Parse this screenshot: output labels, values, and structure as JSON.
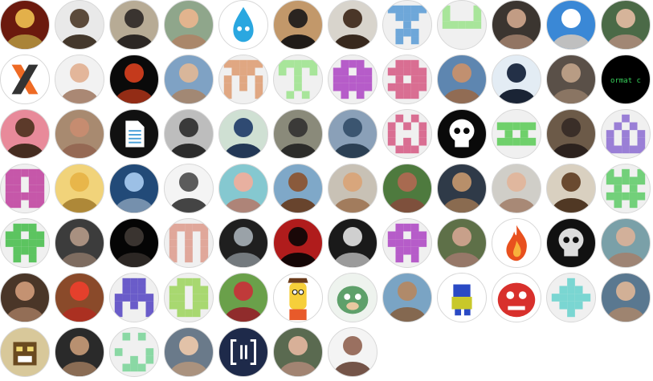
{
  "contributors": [
    {
      "name": "avatar-1",
      "kind": "photo",
      "bg": "#6b1a0e",
      "fg": "#e3b04a"
    },
    {
      "name": "avatar-2",
      "kind": "photo",
      "bg": "#e9e9e9",
      "fg": "#5b4a3a"
    },
    {
      "name": "avatar-3",
      "kind": "photo",
      "bg": "#b7ab95",
      "fg": "#3a3430"
    },
    {
      "name": "avatar-4",
      "kind": "photo",
      "bg": "#8fa68b",
      "fg": "#e2b48e"
    },
    {
      "name": "avatar-5",
      "kind": "icon",
      "bg": "#ffffff",
      "fg": "#2aa7e0",
      "icon": "water-drop-icon"
    },
    {
      "name": "avatar-6",
      "kind": "photo",
      "bg": "#c2986a",
      "fg": "#2a2420"
    },
    {
      "name": "avatar-7",
      "kind": "photo",
      "bg": "#d8d4cc",
      "fg": "#4a3628"
    },
    {
      "name": "avatar-8",
      "kind": "pattern",
      "bg": "#f0f0f0",
      "fg": "#6ea7d9",
      "pattern": "1111101110001000111001010"
    },
    {
      "name": "avatar-9",
      "kind": "pattern",
      "bg": "#f0f0f0",
      "fg": "#a8e59a",
      "pattern": "1000110001111110000000000"
    },
    {
      "name": "avatar-10",
      "kind": "photo",
      "bg": "#3b3530",
      "fg": "#c29c84"
    },
    {
      "name": "avatar-11",
      "kind": "photo",
      "bg": "#3a88d6",
      "fg": "#ffffff"
    },
    {
      "name": "avatar-12",
      "kind": "photo",
      "bg": "#4b6a47",
      "fg": "#d6b49a"
    },
    {
      "name": "avatar-13",
      "kind": "icon",
      "bg": "#ffffff",
      "fg": "#ee6a24",
      "icon": "x-logo-icon"
    },
    {
      "name": "avatar-14",
      "kind": "photo",
      "bg": "#f2f2f2",
      "fg": "#e3b69a"
    },
    {
      "name": "avatar-15",
      "kind": "photo",
      "bg": "#0a0a0a",
      "fg": "#c43a1c"
    },
    {
      "name": "avatar-16",
      "kind": "photo",
      "bg": "#7fa2c4",
      "fg": "#d8b69a"
    },
    {
      "name": "avatar-17",
      "kind": "pattern",
      "bg": "#f0f0f0",
      "fg": "#e0a782",
      "pattern": "1111101110101011010110001"
    },
    {
      "name": "avatar-18",
      "kind": "pattern",
      "bg": "#f0f0f0",
      "fg": "#a8e59a",
      "pattern": "1111110101001000010001010"
    },
    {
      "name": "avatar-19",
      "kind": "pattern",
      "bg": "#f0f0f0",
      "fg": "#b65cc9",
      "pattern": "0111011011111111111101010"
    },
    {
      "name": "avatar-20",
      "kind": "pattern",
      "bg": "#f0f0f0",
      "fg": "#d96e92",
      "pattern": "0111011111010111111101110"
    },
    {
      "name": "avatar-21",
      "kind": "photo",
      "bg": "#5e86b0",
      "fg": "#c19070"
    },
    {
      "name": "avatar-22",
      "kind": "photo",
      "bg": "#e3ecf4",
      "fg": "#233047"
    },
    {
      "name": "avatar-23",
      "kind": "photo",
      "bg": "#5a5048",
      "fg": "#b89c84"
    },
    {
      "name": "avatar-24",
      "kind": "text",
      "bg": "#000000",
      "fg": "#38d35c",
      "text": "ormat c"
    },
    {
      "name": "avatar-25",
      "kind": "photo",
      "bg": "#e88a9a",
      "fg": "#5c3a2a"
    },
    {
      "name": "avatar-26",
      "kind": "photo",
      "bg": "#a88a70",
      "fg": "#c68c70"
    },
    {
      "name": "avatar-27",
      "kind": "icon",
      "bg": "#111111",
      "fg": "#ffffff",
      "icon": "document-icon"
    },
    {
      "name": "avatar-28",
      "kind": "photo",
      "bg": "#bdbdbd",
      "fg": "#3a3a3a"
    },
    {
      "name": "avatar-29",
      "kind": "photo",
      "bg": "#cfe0d3",
      "fg": "#2f4a72"
    },
    {
      "name": "avatar-30",
      "kind": "photo",
      "bg": "#8a8a7a",
      "fg": "#3b3a38"
    },
    {
      "name": "avatar-31",
      "kind": "photo",
      "bg": "#8aa0b8",
      "fg": "#3b5570"
    },
    {
      "name": "avatar-32",
      "kind": "pattern",
      "bg": "#f0f0f0",
      "fg": "#d96e92",
      "pattern": "0101010101100011010101110"
    },
    {
      "name": "avatar-33",
      "kind": "icon",
      "bg": "#0a0a0a",
      "fg": "#ffffff",
      "icon": "skull-icon"
    },
    {
      "name": "avatar-34",
      "kind": "pattern",
      "bg": "#f0f0f0",
      "fg": "#6fd06b",
      "pattern": "0000011111010101111100000"
    },
    {
      "name": "avatar-35",
      "kind": "photo",
      "bg": "#6c5a48",
      "fg": "#3a2e28"
    },
    {
      "name": "avatar-36",
      "kind": "pattern",
      "bg": "#f0f0f0",
      "fg": "#9a7fd6",
      "pattern": "0010001010101011010111111"
    },
    {
      "name": "avatar-37",
      "kind": "pattern",
      "bg": "#f0f0f0",
      "fg": "#c657a9",
      "pattern": "1111111011110111111111011"
    },
    {
      "name": "avatar-38",
      "kind": "photo",
      "bg": "#f1d37a",
      "fg": "#e8b64a"
    },
    {
      "name": "avatar-39",
      "kind": "photo",
      "bg": "#224a78",
      "fg": "#9cc0e6"
    },
    {
      "name": "avatar-40",
      "kind": "photo",
      "bg": "#f4f4f4",
      "fg": "#5b5b5b"
    },
    {
      "name": "avatar-41",
      "kind": "photo",
      "bg": "#85c8d0",
      "fg": "#e8b0a0"
    },
    {
      "name": "avatar-42",
      "kind": "photo",
      "bg": "#7fa8c8",
      "fg": "#8a5a3c"
    },
    {
      "name": "avatar-43",
      "kind": "photo",
      "bg": "#c8c1b5",
      "fg": "#d8a67c"
    },
    {
      "name": "avatar-44",
      "kind": "photo",
      "bg": "#4e7a3e",
      "fg": "#a86a50"
    },
    {
      "name": "avatar-45",
      "kind": "photo",
      "bg": "#2f3a48",
      "fg": "#b88f6a"
    },
    {
      "name": "avatar-46",
      "kind": "photo",
      "bg": "#d0cec8",
      "fg": "#e0b79e"
    },
    {
      "name": "avatar-47",
      "kind": "photo",
      "bg": "#d9d0c0",
      "fg": "#6a4a30"
    },
    {
      "name": "avatar-48",
      "kind": "pattern",
      "bg": "#f0f0f0",
      "fg": "#72d07a",
      "pattern": "1010111111010101111101010"
    },
    {
      "name": "avatar-49",
      "kind": "pattern",
      "bg": "#f0f0f0",
      "fg": "#5cc460",
      "pattern": "0111011011111110111001010"
    },
    {
      "name": "avatar-50",
      "kind": "photo",
      "bg": "#3c3c3c",
      "fg": "#a89080"
    },
    {
      "name": "avatar-51",
      "kind": "photo",
      "bg": "#050505",
      "fg": "#3a3430"
    },
    {
      "name": "avatar-52",
      "kind": "pattern",
      "bg": "#f0f0f0",
      "fg": "#e0a79a",
      "pattern": "1111110101101011010110101"
    },
    {
      "name": "avatar-53",
      "kind": "photo",
      "bg": "#1f1f1f",
      "fg": "#9aa2a8"
    },
    {
      "name": "avatar-54",
      "kind": "photo",
      "bg": "#b01c1c",
      "fg": "#1a0808"
    },
    {
      "name": "avatar-55",
      "kind": "photo",
      "bg": "#1a1a1a",
      "fg": "#cfcfcf"
    },
    {
      "name": "avatar-56",
      "kind": "pattern",
      "bg": "#f0f0f0",
      "fg": "#b65cc9",
      "pattern": "0111011011111110111001010"
    },
    {
      "name": "avatar-57",
      "kind": "photo",
      "bg": "#5e7048",
      "fg": "#c8a08a"
    },
    {
      "name": "avatar-58",
      "kind": "icon",
      "bg": "#ffffff",
      "fg": "#e8501e",
      "icon": "flame-icon"
    },
    {
      "name": "avatar-59",
      "kind": "icon",
      "bg": "#111111",
      "fg": "#dddddd",
      "icon": "skull-icon"
    },
    {
      "name": "avatar-60",
      "kind": "photo",
      "bg": "#7aa0a8",
      "fg": "#d2b09a"
    },
    {
      "name": "avatar-61",
      "kind": "photo",
      "bg": "#4a3628",
      "fg": "#c49272"
    },
    {
      "name": "avatar-62",
      "kind": "photo",
      "bg": "#8a4a2a",
      "fg": "#e4402c"
    },
    {
      "name": "avatar-63",
      "kind": "pattern",
      "bg": "#f0f0f0",
      "fg": "#6a5cc9",
      "pattern": "0111001110111111010110001"
    },
    {
      "name": "avatar-64",
      "kind": "pattern",
      "bg": "#f0f0f0",
      "fg": "#a8d870",
      "pattern": "0111011011110111101101110"
    },
    {
      "name": "avatar-65",
      "kind": "photo",
      "bg": "#6aa04a",
      "fg": "#c03a3a"
    },
    {
      "name": "avatar-66",
      "kind": "icon",
      "bg": "#ffffff",
      "fg": "#f6cf3a",
      "icon": "cartoon-face-icon"
    },
    {
      "name": "avatar-67",
      "kind": "icon",
      "bg": "#eef3ee",
      "fg": "#5ea06a",
      "icon": "mascot-icon"
    },
    {
      "name": "avatar-68",
      "kind": "photo",
      "bg": "#7aa4c4",
      "fg": "#b08a6a"
    },
    {
      "name": "avatar-69",
      "kind": "icon",
      "bg": "#ffffff",
      "fg": "#2a4ac4",
      "icon": "pixel-robot-icon"
    },
    {
      "name": "avatar-70",
      "kind": "icon",
      "bg": "#ffffff",
      "fg": "#d8302c",
      "icon": "red-monster-icon"
    },
    {
      "name": "avatar-71",
      "kind": "pattern",
      "bg": "#f0f0f0",
      "fg": "#7ad6d2",
      "pattern": "0010001110111110111000100"
    },
    {
      "name": "avatar-72",
      "kind": "photo",
      "bg": "#5a7890",
      "fg": "#d2b096"
    },
    {
      "name": "avatar-73",
      "kind": "icon",
      "bg": "#d8c89a",
      "fg": "#6a4a20",
      "icon": "pixel-character-icon"
    },
    {
      "name": "avatar-74",
      "kind": "photo",
      "bg": "#2a2a2a",
      "fg": "#b89070"
    },
    {
      "name": "avatar-75",
      "kind": "pattern",
      "bg": "#f0f0f0",
      "fg": "#8ad8a4",
      "pattern": "0101000000100010010101110"
    },
    {
      "name": "avatar-76",
      "kind": "photo",
      "bg": "#6a7a8a",
      "fg": "#e2c2a8"
    },
    {
      "name": "avatar-77",
      "kind": "icon",
      "bg": "#1e2a4a",
      "fg": "#ffffff",
      "icon": "brackets-logo-icon"
    },
    {
      "name": "avatar-78",
      "kind": "photo",
      "bg": "#5a6a50",
      "fg": "#d8b098"
    },
    {
      "name": "avatar-79",
      "kind": "photo",
      "bg": "#f4f4f4",
      "fg": "#9a7060"
    }
  ]
}
